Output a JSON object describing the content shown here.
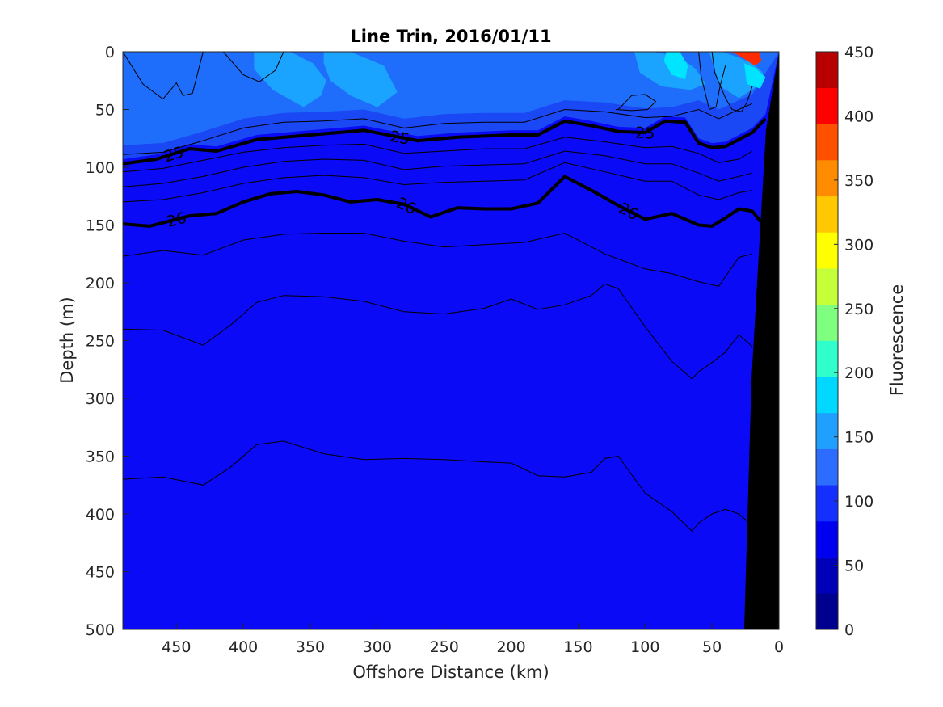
{
  "chart_data": {
    "type": "heatmap",
    "title": "Line Trin, 2016/01/11",
    "xlabel": "Offshore Distance (km)",
    "ylabel": "Depth (m)",
    "colorbar_label": "Fluorescence",
    "xlim": [
      490,
      0
    ],
    "ylim": [
      500,
      0
    ],
    "x_ticks": [
      "450",
      "400",
      "350",
      "300",
      "250",
      "200",
      "150",
      "100",
      "50",
      "0"
    ],
    "y_ticks": [
      "0",
      "50",
      "100",
      "150",
      "200",
      "250",
      "300",
      "350",
      "400",
      "450",
      "500"
    ],
    "colorbar_ticks": [
      "0",
      "50",
      "100",
      "150",
      "200",
      "250",
      "300",
      "350",
      "400",
      "450"
    ],
    "colorbar_range": [
      0,
      450
    ],
    "colorbar_colors": [
      "#00008f",
      "#0000b8",
      "#0000f0",
      "#1430ff",
      "#2c6cff",
      "#1fa0ff",
      "#00d8ff",
      "#30ffcc",
      "#7fff7f",
      "#c4ff3a",
      "#ffff00",
      "#ffc800",
      "#ff8c00",
      "#ff5000",
      "#ff0000",
      "#b80000"
    ],
    "fill_colors": {
      "deep": "#0a0af6",
      "mid": "#1a48f4",
      "shallow": "#1f6dfb",
      "patch": "#1aa4ff",
      "bright": "#00e4ff",
      "hotspot": "#ff2a00"
    },
    "density_contours": [
      {
        "label": "25",
        "x": [
          490,
          465,
          440,
          420,
          390,
          350,
          310,
          270,
          240,
          200,
          180,
          160,
          140,
          120,
          100,
          85,
          70,
          60,
          50,
          40,
          30,
          20,
          10
        ],
        "y": [
          97,
          93,
          84,
          86,
          76,
          72,
          68,
          77,
          74,
          72,
          72,
          60,
          64,
          69,
          70,
          60,
          61,
          79,
          83,
          82,
          76,
          70,
          58
        ]
      },
      {
        "label": "26",
        "x": [
          490,
          470,
          440,
          420,
          400,
          380,
          360,
          340,
          320,
          300,
          280,
          260,
          240,
          220,
          200,
          180,
          160,
          140,
          120,
          100,
          80,
          60,
          50,
          40,
          30,
          20,
          13
        ],
        "y": [
          149,
          151,
          142,
          140,
          130,
          123,
          121,
          124,
          130,
          128,
          132,
          143,
          135,
          136,
          136,
          131,
          108,
          120,
          133,
          145,
          140,
          150,
          151,
          144,
          136,
          138,
          148
        ]
      }
    ],
    "thin_contours": [
      {
        "x": [
          490,
          460,
          430,
          400,
          370,
          340,
          310,
          280,
          250,
          220,
          190,
          160,
          130,
          100,
          80,
          60,
          45,
          30,
          20
        ],
        "y": [
          89,
          87,
          77,
          66,
          61,
          60,
          58,
          66,
          62,
          61,
          61,
          50,
          52,
          57,
          56,
          50,
          58,
          50,
          45
        ]
      },
      {
        "x": [
          490,
          460,
          430,
          400,
          370,
          340,
          310,
          280,
          250,
          220,
          190,
          160,
          130,
          100,
          80,
          60,
          45,
          30,
          20
        ],
        "y": [
          104,
          101,
          94,
          87,
          83,
          81,
          80,
          88,
          86,
          84,
          84,
          74,
          78,
          83,
          82,
          88,
          96,
          93,
          86
        ]
      },
      {
        "x": [
          490,
          460,
          430,
          400,
          370,
          340,
          310,
          280,
          250,
          220,
          190,
          160,
          130,
          100,
          80,
          60,
          45,
          30,
          20
        ],
        "y": [
          117,
          114,
          108,
          100,
          95,
          93,
          94,
          102,
          99,
          98,
          97,
          86,
          90,
          97,
          97,
          105,
          112,
          108,
          105
        ]
      },
      {
        "x": [
          490,
          460,
          430,
          400,
          370,
          340,
          310,
          280,
          250,
          220,
          190,
          160,
          130,
          100,
          80,
          60,
          45,
          30,
          20
        ],
        "y": [
          130,
          128,
          122,
          114,
          109,
          107,
          109,
          115,
          113,
          112,
          111,
          96,
          104,
          112,
          112,
          124,
          128,
          122,
          120
        ]
      },
      {
        "x": [
          490,
          460,
          430,
          400,
          370,
          340,
          310,
          280,
          250,
          220,
          190,
          160,
          130,
          100,
          80,
          60,
          45,
          30,
          20
        ],
        "y": [
          177,
          172,
          176,
          163,
          158,
          157,
          157,
          164,
          169,
          167,
          165,
          157,
          175,
          188,
          192,
          199,
          203,
          178,
          175
        ]
      },
      {
        "x": [
          490,
          460,
          430,
          410,
          390,
          370,
          340,
          310,
          280,
          250,
          220,
          200,
          180,
          160,
          140,
          130,
          120,
          100,
          80,
          65,
          60,
          50,
          40,
          30,
          20
        ],
        "y": [
          240,
          241,
          254,
          237,
          217,
          211,
          212,
          216,
          225,
          227,
          222,
          214,
          223,
          219,
          211,
          201,
          205,
          238,
          268,
          283,
          277,
          269,
          260,
          245,
          255
        ]
      },
      {
        "x": [
          490,
          460,
          430,
          410,
          390,
          370,
          340,
          310,
          280,
          250,
          220,
          200,
          180,
          160,
          140,
          130,
          120,
          100,
          80,
          65,
          60,
          50,
          40,
          30,
          20
        ],
        "y": [
          370,
          368,
          375,
          360,
          340,
          337,
          348,
          353,
          352,
          353,
          355,
          356,
          367,
          368,
          364,
          352,
          350,
          382,
          398,
          415,
          408,
          400,
          396,
          400,
          410
        ]
      },
      {
        "x": [
          490,
          475,
          460,
          450,
          445,
          438,
          430
        ],
        "y": [
          0,
          28,
          41,
          27,
          38,
          36,
          0
        ]
      },
      {
        "x": [
          415,
          400,
          388,
          382,
          376,
          370
        ],
        "y": [
          0,
          20,
          26,
          21,
          16,
          0
        ]
      },
      {
        "x": [
          50,
          48,
          40,
          35,
          28,
          24,
          20
        ],
        "y": [
          0,
          18,
          40,
          50,
          52,
          44,
          30
        ]
      },
      {
        "x": [
          60,
          58,
          52,
          47,
          44,
          40
        ],
        "y": [
          0,
          22,
          50,
          48,
          30,
          12
        ]
      },
      {
        "x": [
          120,
          110,
          100,
          92,
          98,
          110,
          122
        ],
        "y": [
          50,
          38,
          37,
          43,
          50,
          51,
          50
        ]
      }
    ],
    "bright_patches": [
      {
        "level": "patch",
        "x": [
          392,
          365,
          348,
          338,
          342,
          355,
          378,
          392
        ],
        "y": [
          0,
          0,
          10,
          25,
          38,
          48,
          33,
          15
        ]
      },
      {
        "level": "patch",
        "x": [
          340,
          320,
          295,
          285,
          300,
          320,
          335,
          340
        ],
        "y": [
          0,
          0,
          12,
          35,
          48,
          38,
          25,
          10
        ]
      },
      {
        "level": "patch",
        "x": [
          108,
          95,
          75,
          62,
          55,
          66,
          88,
          104
        ],
        "y": [
          0,
          0,
          4,
          15,
          28,
          33,
          30,
          18
        ]
      },
      {
        "level": "patch",
        "x": [
          52,
          42,
          30,
          20,
          12,
          16,
          30,
          44
        ],
        "y": [
          0,
          0,
          5,
          10,
          18,
          30,
          40,
          30
        ]
      },
      {
        "level": "bright",
        "x": [
          84,
          74,
          68,
          70,
          80,
          86
        ],
        "y": [
          0,
          0,
          12,
          24,
          20,
          8
        ]
      },
      {
        "level": "bright",
        "x": [
          26,
          18,
          10,
          14,
          24
        ],
        "y": [
          10,
          14,
          22,
          32,
          28
        ]
      }
    ],
    "hotspot": {
      "x": [
        36,
        26,
        20,
        15,
        13,
        18,
        26,
        32
      ],
      "y": [
        0,
        0,
        0,
        0,
        8,
        12,
        6,
        2
      ]
    }
  }
}
